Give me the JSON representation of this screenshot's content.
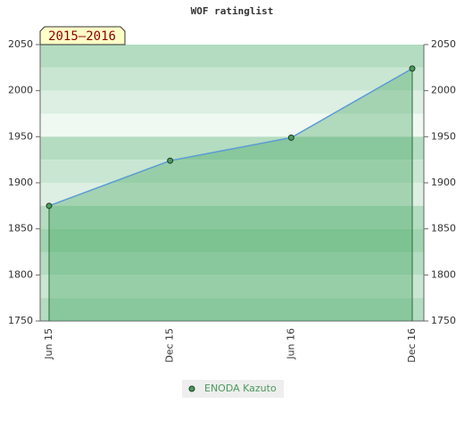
{
  "chart_data": {
    "type": "area-line",
    "title": "WOF ratinglist",
    "annotation": "2015–2016",
    "categories": [
      "Jun 15",
      "Dec 15",
      "Jun 16",
      "Dec 16"
    ],
    "series": [
      {
        "name": "ENODA Kazuto",
        "color": "#4a9a5c",
        "values": [
          1875,
          1924,
          1949,
          2024
        ]
      }
    ],
    "ylim": [
      1750,
      2050
    ],
    "yticks": [
      1750,
      1800,
      1850,
      1900,
      1950,
      2000,
      2050
    ],
    "y2lim": [
      1750,
      2050
    ],
    "y2ticks": [
      1750,
      1800,
      1850,
      1900,
      1950,
      2000,
      2050
    ],
    "line_color": "#5b9bd5",
    "legend": "bottom"
  }
}
